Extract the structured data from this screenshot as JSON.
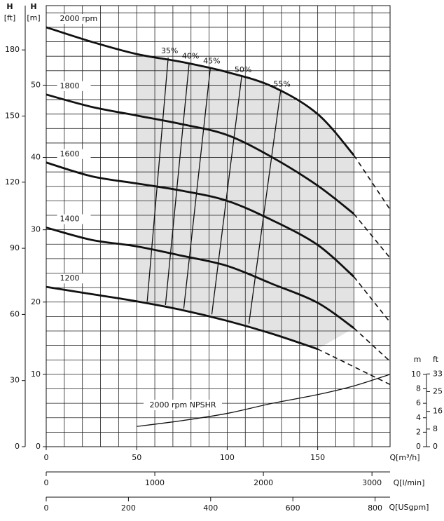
{
  "chart_data": {
    "type": "line",
    "ylabel": "H",
    "yunit": "[m]",
    "ylim": [
      0,
      61
    ],
    "yticks": [
      0,
      10,
      20,
      30,
      40,
      50
    ],
    "yftlabel": "H",
    "yftunit": "[ft]",
    "yftlim": [
      0,
      200.1
    ],
    "yftticks": [
      0,
      30,
      60,
      90,
      120,
      150,
      180
    ],
    "xlabel": "Q[m³/h]",
    "xlim": [
      0,
      190
    ],
    "xticks": [
      0,
      50,
      100,
      150
    ],
    "xlminlabel": "Q[l/min]",
    "xlminlim": [
      0,
      3166.7
    ],
    "xlminticks": [
      0,
      1000,
      2000,
      3000
    ],
    "xgpmlabel": "Q[USgpm]",
    "xgpmlim": [
      0,
      836.5
    ],
    "xgpmticks": [
      0,
      200,
      400,
      600,
      800
    ],
    "grid": true,
    "xgrid_step": 10,
    "ygrid_step": 2,
    "series": [
      {
        "name": "2000 rpm",
        "x": [
          0,
          25,
          50,
          75,
          100,
          125,
          150,
          170
        ],
        "values": [
          58,
          56,
          54.3,
          53.2,
          51.8,
          49.8,
          46,
          40.3
        ],
        "extension": {
          "x": [
            170,
            190
          ],
          "values": [
            40.3,
            32.8
          ]
        }
      },
      {
        "name": "1800",
        "x": [
          0,
          25,
          50,
          75,
          100,
          125,
          150,
          170
        ],
        "values": [
          48.7,
          47,
          45.8,
          44.6,
          43.1,
          40,
          36.1,
          32.2
        ],
        "extension": {
          "x": [
            170,
            190
          ],
          "values": [
            32.2,
            26.1
          ]
        }
      },
      {
        "name": "1600",
        "x": [
          0,
          25,
          50,
          75,
          100,
          125,
          150,
          170
        ],
        "values": [
          39.3,
          37.4,
          36.4,
          35.4,
          34,
          31.3,
          27.9,
          23.5
        ],
        "extension": {
          "x": [
            170,
            190
          ],
          "values": [
            23.5,
            17.2
          ]
        }
      },
      {
        "name": "1400",
        "x": [
          0,
          25,
          50,
          75,
          100,
          125,
          150,
          170
        ],
        "values": [
          30.3,
          28.6,
          27.7,
          26.4,
          25,
          22.5,
          19.9,
          16.4
        ],
        "extension": {
          "x": [
            170,
            190
          ],
          "values": [
            16.4,
            11.8
          ]
        }
      },
      {
        "name": "1200",
        "x": [
          0,
          25,
          50,
          75,
          100,
          125,
          150
        ],
        "values": [
          22.1,
          21.1,
          20.1,
          18.9,
          17.4,
          15.6,
          13.5
        ],
        "extension": {
          "x": [
            150,
            190
          ],
          "values": [
            13.5,
            8.6
          ]
        }
      }
    ],
    "efficiency": [
      {
        "name": "35%",
        "x": [
          55.8,
          67.4
        ],
        "values": [
          20.1,
          53.8
        ]
      },
      {
        "name": "40%",
        "x": [
          65.9,
          79
        ],
        "values": [
          19.6,
          53.1
        ]
      },
      {
        "name": "45%",
        "x": [
          76,
          90.7
        ],
        "values": [
          19.1,
          52.4
        ]
      },
      {
        "name": "50%",
        "x": [
          91.5,
          108
        ],
        "values": [
          18.3,
          51.2
        ]
      },
      {
        "name": "55%",
        "x": [
          112,
          129.5
        ],
        "values": [
          17,
          49.2
        ]
      }
    ],
    "npshr": {
      "name": "2000 rpm NPSHR",
      "x": [
        50,
        75,
        100,
        125,
        150,
        170,
        190
      ],
      "values": [
        2.8,
        3.6,
        4.6,
        6,
        7.2,
        8.4,
        10
      ],
      "mlabel": "m",
      "mticks": [
        0,
        2,
        4,
        6,
        8,
        10
      ],
      "ftlabel": "ft",
      "ftticks": [
        0,
        8,
        16,
        25,
        33
      ]
    }
  }
}
